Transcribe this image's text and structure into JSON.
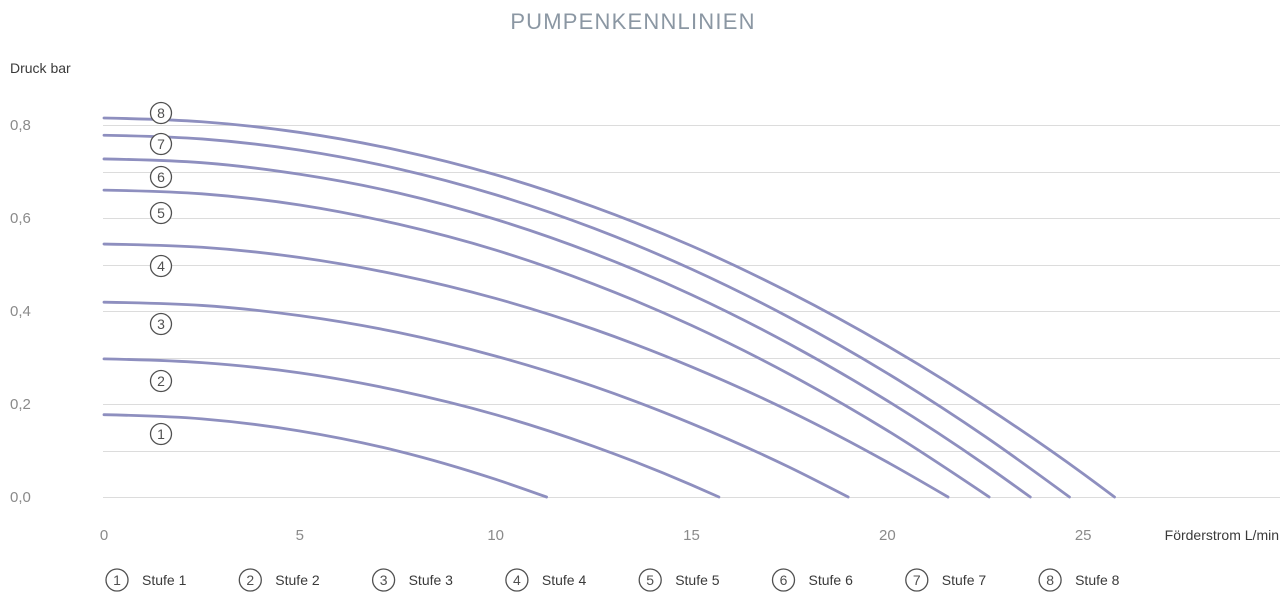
{
  "chart_data": {
    "type": "line",
    "title": "PUMPENKENNLINIEN",
    "xlabel": "Förderstrom L/min",
    "ylabel": "Druck bar",
    "xlim": [
      0,
      30
    ],
    "ylim": [
      0,
      0.8
    ],
    "x_ticks": [
      {
        "value": 0,
        "label": "0"
      },
      {
        "value": 5,
        "label": "5"
      },
      {
        "value": 10,
        "label": "10"
      },
      {
        "value": 15,
        "label": "15"
      },
      {
        "value": 20,
        "label": "20"
      },
      {
        "value": 25,
        "label": "25"
      }
    ],
    "y_ticks": [
      {
        "value": 0,
        "label": "0,0"
      },
      {
        "value": 0.2,
        "label": "0,2"
      },
      {
        "value": 0.4,
        "label": "0,4"
      },
      {
        "value": 0.6,
        "label": "0,6"
      },
      {
        "value": 0.8,
        "label": "0,8"
      }
    ],
    "y_grid": [
      0,
      0.1,
      0.2,
      0.3,
      0.4,
      0.5,
      0.6,
      0.7,
      0.8
    ],
    "grid": "horizontal",
    "legend_position": "bottom",
    "colors": {
      "curve": "#8e8fbf",
      "grid": "#dcdcdc",
      "title": "#8b97a3",
      "tick_label": "#8a8a8a",
      "axis_label": "#3a3a3a",
      "legend_label": "#3a3a3a",
      "marker": "#505050"
    },
    "series": [
      {
        "name": "Stufe 1",
        "marker": "1",
        "x": [
          0,
          2.5,
          5,
          7.5,
          10,
          11.3
        ],
        "y": [
          0.177,
          0.168,
          0.142,
          0.099,
          0.038,
          0
        ]
      },
      {
        "name": "Stufe 2",
        "marker": "2",
        "x": [
          0,
          2.5,
          5,
          7.5,
          10,
          12.5,
          15,
          15.7
        ],
        "y": [
          0.297,
          0.289,
          0.267,
          0.229,
          0.177,
          0.109,
          0.026,
          0
        ]
      },
      {
        "name": "Stufe 3",
        "marker": "3",
        "x": [
          0,
          2.5,
          5,
          7.5,
          10,
          12.5,
          15,
          17.5,
          19.0
        ],
        "y": [
          0.419,
          0.412,
          0.39,
          0.354,
          0.303,
          0.238,
          0.158,
          0.064,
          0
        ]
      },
      {
        "name": "Stufe 4",
        "marker": "4",
        "x": [
          0,
          2.5,
          5,
          7.5,
          10,
          12.5,
          15,
          17.5,
          20,
          21.55
        ],
        "y": [
          0.544,
          0.537,
          0.515,
          0.478,
          0.427,
          0.361,
          0.28,
          0.185,
          0.075,
          0
        ]
      },
      {
        "name": "Stufe 5",
        "marker": "5",
        "x": [
          0,
          2.5,
          5,
          7.5,
          10,
          12.5,
          15,
          17.5,
          20,
          22.6
        ],
        "y": [
          0.66,
          0.652,
          0.628,
          0.587,
          0.531,
          0.458,
          0.369,
          0.264,
          0.143,
          0
        ]
      },
      {
        "name": "Stufe 6",
        "marker": "6",
        "x": [
          0,
          2.5,
          5,
          7.5,
          10,
          12.5,
          15,
          17.5,
          20,
          22.5,
          23.65
        ],
        "y": [
          0.727,
          0.719,
          0.694,
          0.654,
          0.597,
          0.524,
          0.435,
          0.329,
          0.207,
          0.069,
          0
        ]
      },
      {
        "name": "Stufe 7",
        "marker": "7",
        "x": [
          0,
          2.5,
          5,
          7.5,
          10,
          12.5,
          15,
          17.5,
          20,
          22.5,
          24.65
        ],
        "y": [
          0.778,
          0.77,
          0.746,
          0.706,
          0.65,
          0.578,
          0.49,
          0.386,
          0.266,
          0.13,
          0
        ]
      },
      {
        "name": "Stufe 8",
        "marker": "8",
        "x": [
          0,
          2.5,
          5,
          7.5,
          10,
          12.5,
          15,
          17.5,
          20,
          22.5,
          25,
          25.8
        ],
        "y": [
          0.815,
          0.807,
          0.784,
          0.746,
          0.693,
          0.624,
          0.54,
          0.44,
          0.325,
          0.195,
          0.05,
          0
        ]
      }
    ]
  }
}
